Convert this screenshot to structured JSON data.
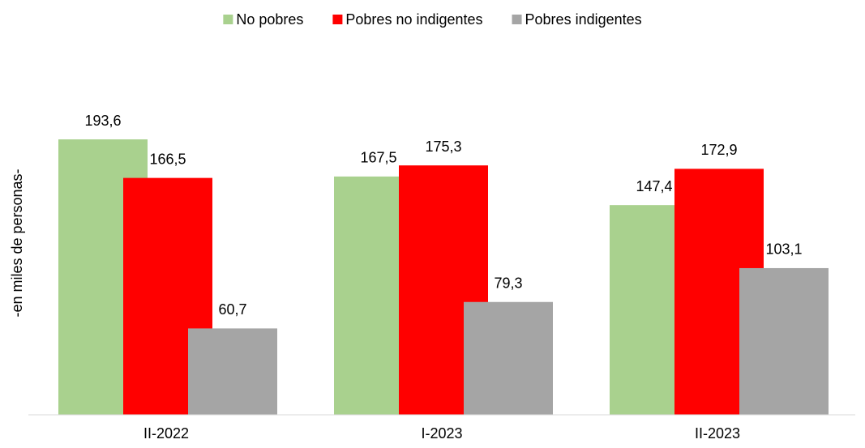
{
  "chart_data": {
    "type": "bar",
    "y_label": "-en miles de personas-",
    "categories": [
      "II-2022",
      "I-2023",
      "II-2023"
    ],
    "series": [
      {
        "name": "No pobres",
        "color": "#a9d18e",
        "values": [
          193.6,
          167.5,
          147.4
        ],
        "value_labels": [
          "193,6",
          "167,5",
          "147,4"
        ]
      },
      {
        "name": "Pobres no indigentes",
        "color": "#ff0000",
        "values": [
          166.5,
          175.3,
          172.9
        ],
        "value_labels": [
          "166,5",
          "175,3",
          "172,9"
        ]
      },
      {
        "name": "Pobres indigentes",
        "color": "#a5a5a5",
        "values": [
          60.7,
          79.3,
          103.1
        ],
        "value_labels": [
          "60,7",
          "79,3",
          "103,1"
        ]
      }
    ],
    "ylim": [
      0,
      250
    ],
    "legend": "top"
  }
}
